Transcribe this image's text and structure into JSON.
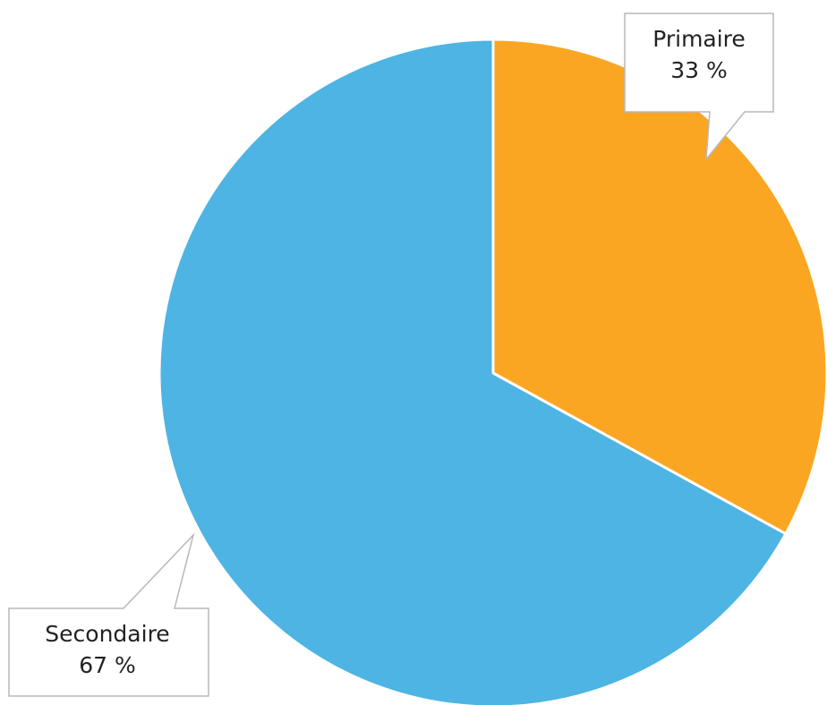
{
  "chart_data": {
    "type": "pie",
    "title": "",
    "slices": [
      {
        "label": "Primaire",
        "value": 33,
        "value_label": "33 %",
        "color": "#FBA622"
      },
      {
        "label": "Secondaire",
        "value": 67,
        "value_label": "67 %",
        "color": "#4EB4E3"
      }
    ],
    "start_angle": "12 o'clock",
    "direction": "clockwise",
    "legend": "none",
    "data_labels": "callouts",
    "slice_border_color": "#ffffff"
  }
}
